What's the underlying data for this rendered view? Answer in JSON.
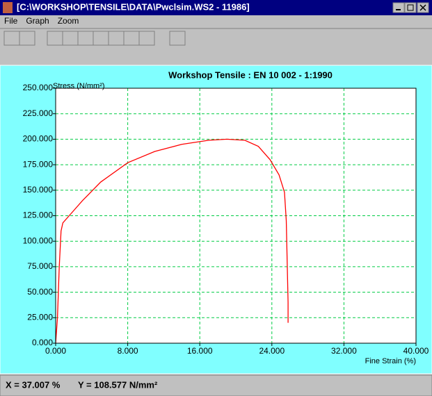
{
  "window": {
    "title": "[C:\\WORKSHOP\\TENSILE\\DATA\\Pwclsim.WS2 - 11986]"
  },
  "menu": [
    "File",
    "Graph",
    "Zoom"
  ],
  "chart_data": {
    "type": "line",
    "title": "Workshop Tensile :  EN 10 002 - 1:1990",
    "y_label": "Stress (N/mm²)",
    "x_label": "Fine Strain (%)",
    "x": [
      0,
      0.2,
      0.4,
      0.6,
      0.8,
      1.5,
      3,
      5,
      8,
      11,
      14,
      17,
      19,
      21,
      22.5,
      23.8,
      24.8,
      25.4,
      25.6,
      25.7,
      25.8,
      25.8
    ],
    "series": [
      {
        "color": "#ff0000",
        "values": [
          0,
          25,
          75,
          110,
          118,
          125,
          140,
          158,
          177,
          188,
          195,
          199,
          200,
          199,
          193,
          180,
          165,
          148,
          120,
          80,
          40,
          20
        ]
      }
    ],
    "xlim": [
      0,
      40
    ],
    "ylim": [
      0,
      250
    ],
    "xticks": [
      {
        "value": 0,
        "label": "0.000"
      },
      {
        "value": 8,
        "label": "8.000"
      },
      {
        "value": 16,
        "label": "16.000"
      },
      {
        "value": 24,
        "label": "24.000"
      },
      {
        "value": 32,
        "label": "32.000"
      },
      {
        "value": 40,
        "label": "40.000"
      }
    ],
    "yticks": [
      {
        "value": 0,
        "label": "0.000"
      },
      {
        "value": 25,
        "label": "25.000"
      },
      {
        "value": 50,
        "label": "50.000"
      },
      {
        "value": 75,
        "label": "75.000"
      },
      {
        "value": 100,
        "label": "100.000"
      },
      {
        "value": 125,
        "label": "125.000"
      },
      {
        "value": 150,
        "label": "150.000"
      },
      {
        "value": 175,
        "label": "175.000"
      },
      {
        "value": 200,
        "label": "200.000"
      },
      {
        "value": 225,
        "label": "225.000"
      },
      {
        "value": 250,
        "label": "250.000"
      }
    ],
    "grid": true,
    "grid_color": "#00cc44"
  },
  "status_bar": {
    "x_readout": "X = 37.007 %",
    "y_readout": "Y = 108.577 N/mm²"
  }
}
